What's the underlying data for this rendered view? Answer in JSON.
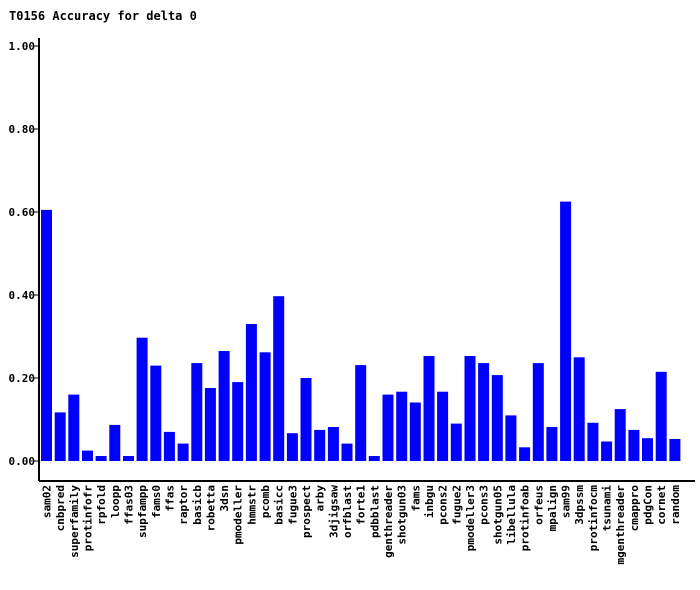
{
  "chart_data": {
    "type": "bar",
    "title": "T0156 Accuracy for delta 0",
    "xlabel": "",
    "ylabel": "",
    "ylim": [
      0,
      1
    ],
    "yticks": [
      "0.00",
      "0.20",
      "0.40",
      "0.60",
      "0.80",
      "1.00"
    ],
    "ytick_values": [
      0,
      0.2,
      0.4,
      0.6,
      0.8,
      1.0
    ],
    "grid": false,
    "bar_color": "#0000ff",
    "categories": [
      "sam02",
      "cnbpred",
      "superfamily",
      "protinfofr",
      "rpfold",
      "loopp",
      "ffas03",
      "supfampp",
      "fams0",
      "ffas",
      "raptor",
      "basicb",
      "robetta",
      "3dsn",
      "pmodeller",
      "hmmstr",
      "pcomb",
      "basicc",
      "fugue3",
      "prospect",
      "arby",
      "3djigsaw",
      "orfblast",
      "forte1",
      "pdbblast",
      "genthreader",
      "shotgun03",
      "fams",
      "inbgu",
      "pcons2",
      "fugue2",
      "pmodeller3",
      "pcons3",
      "shotgun05",
      "libellula",
      "protinfoab",
      "orfeus",
      "mpalign",
      "sam99",
      "3dpssm",
      "protinfocm",
      "tsunami",
      "mgenthreader",
      "cmappro",
      "pdgCon",
      "cornet",
      "random"
    ],
    "values": [
      0.605,
      0.117,
      0.16,
      0.025,
      0.012,
      0.087,
      0.012,
      0.297,
      0.23,
      0.07,
      0.042,
      0.236,
      0.176,
      0.265,
      0.19,
      0.33,
      0.262,
      0.397,
      0.067,
      0.2,
      0.075,
      0.082,
      0.042,
      0.231,
      0.012,
      0.16,
      0.167,
      0.141,
      0.253,
      0.167,
      0.09,
      0.253,
      0.236,
      0.207,
      0.11,
      0.033,
      0.236,
      0.082,
      0.625,
      0.25,
      0.092,
      0.047,
      0.125,
      0.075,
      0.055,
      0.215,
      0.053
    ]
  }
}
